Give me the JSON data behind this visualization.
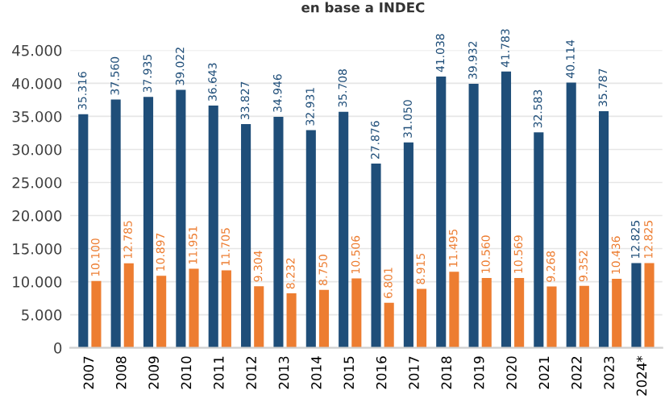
{
  "chart_data": {
    "type": "bar",
    "annotations": [
      "en base a INDEC"
    ],
    "categories": [
      "2007",
      "2008",
      "2009",
      "2010",
      "2011",
      "2012",
      "2013",
      "2014",
      "2015",
      "2016",
      "2017",
      "2018",
      "2019",
      "2020",
      "2021",
      "2022",
      "2023",
      "2024*"
    ],
    "series": [
      {
        "color": "#1f4e79",
        "values": [
          35316,
          37560,
          37935,
          39022,
          36643,
          33827,
          34946,
          32931,
          35708,
          27876,
          31050,
          41038,
          39932,
          41783,
          32583,
          40114,
          35787,
          12825
        ],
        "value_labels": [
          "35.316",
          "37.560",
          "37.935",
          "39.022",
          "36.643",
          "33.827",
          "34.946",
          "32.931",
          "35.708",
          "27.876",
          "31.050",
          "41.038",
          "39.932",
          "41.783",
          "32.583",
          "40.114",
          "35.787",
          "12.825"
        ]
      },
      {
        "color": "#ed7d31",
        "values": [
          10100,
          12785,
          10897,
          11951,
          11705,
          9304,
          8232,
          8750,
          10506,
          6801,
          8915,
          11495,
          10560,
          10569,
          9268,
          9352,
          10436,
          12825
        ],
        "value_labels": [
          "10.100",
          "12.785",
          "10.897",
          "11.951",
          "11.705",
          "9.304",
          "8.232",
          "8.750",
          "10.506",
          "6.801",
          "8.915",
          "11.495",
          "10.560",
          "10.569",
          "9.268",
          "9.352",
          "10.436",
          "12.825"
        ]
      }
    ],
    "ylim": [
      0,
      45000
    ],
    "yticks": [
      0,
      {
        "value": 5000,
        "label": "5.000"
      },
      {
        "value": 10000,
        "label": "10.000"
      },
      {
        "value": 15000,
        "label": "15.000"
      },
      {
        "value": 20000,
        "label": "20.000"
      },
      {
        "value": 25000,
        "label": "25.000"
      },
      {
        "value": 30000,
        "label": "30.000"
      },
      {
        "value": 35000,
        "label": "35.000"
      },
      {
        "value": 40000,
        "label": "40.000"
      },
      {
        "value": 45000,
        "label": "45.000"
      }
    ],
    "grid": "y",
    "legend": false
  }
}
